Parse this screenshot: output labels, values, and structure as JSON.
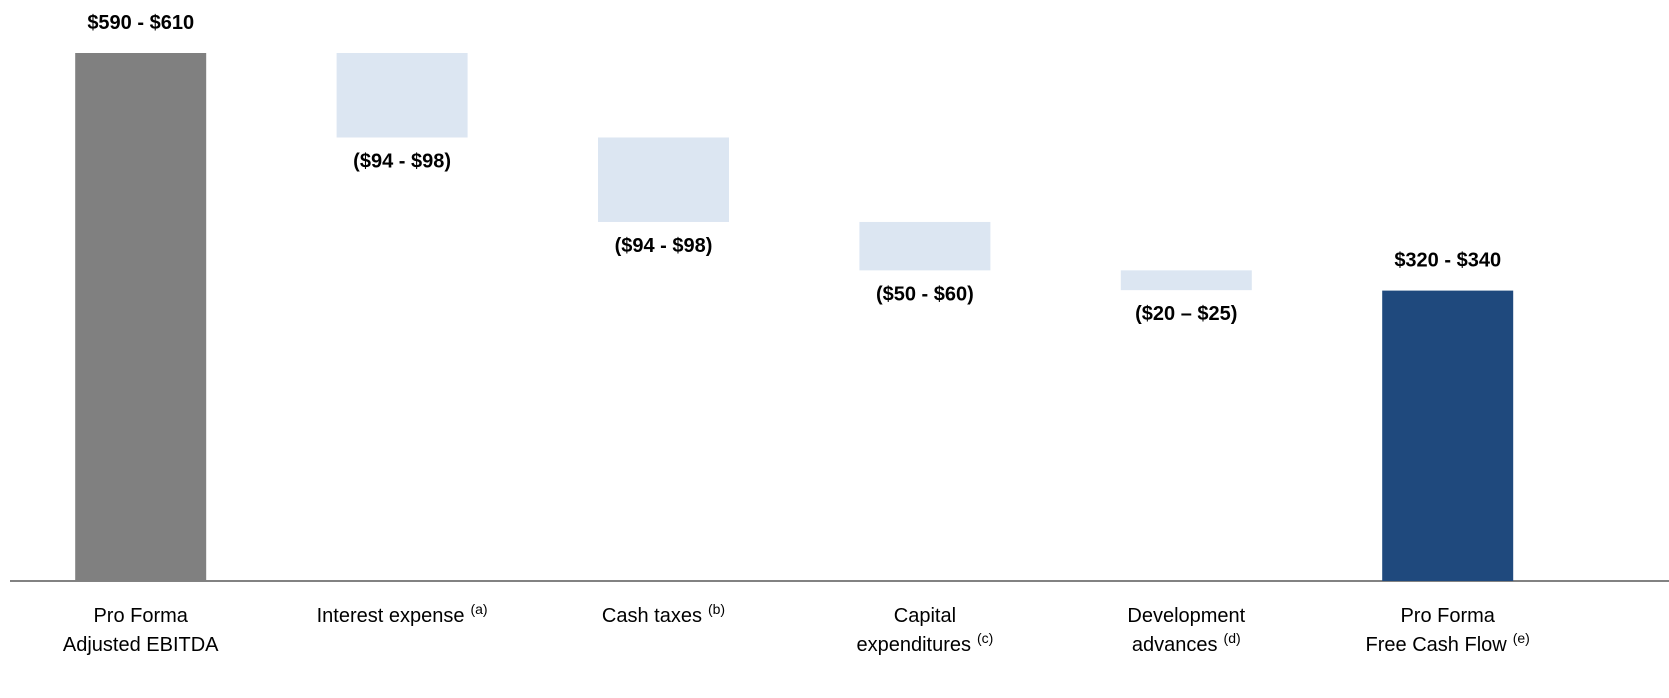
{
  "chart_data": {
    "type": "waterfall",
    "categories": [
      [
        "Pro Forma",
        "Adjusted EBITDA"
      ],
      [
        "Interest expense"
      ],
      [
        "Cash taxes"
      ],
      [
        "Capital",
        "expenditures"
      ],
      [
        "Development",
        "advances"
      ],
      [
        "Pro Forma",
        "Free Cash Flow"
      ]
    ],
    "notes": [
      null,
      "(a)",
      "(b)",
      "(c)",
      "(d)",
      "(e)"
    ],
    "measure": [
      "total",
      "relative",
      "relative",
      "relative",
      "relative",
      "total"
    ],
    "values": [
      600,
      -96,
      -96,
      -55,
      -22.5,
      330
    ],
    "value_labels": [
      "$590 - $610",
      "($94 - $98)",
      "($94 - $98)",
      "($50 - $60)",
      "($20 – $25)",
      "$320 - $340"
    ],
    "colors": [
      "#808080",
      "#dce6f2",
      "#dce6f2",
      "#dce6f2",
      "#dce6f2",
      "#1f497d"
    ]
  }
}
